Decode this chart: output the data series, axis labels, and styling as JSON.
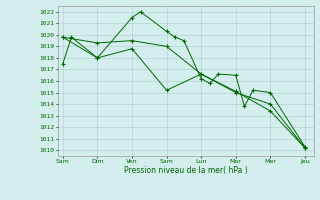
{
  "title": "",
  "xlabel": "Pression niveau de la mer( hPa )",
  "background_color": "#d4eeee",
  "grid_color": "#aacccc",
  "line_color": "#006600",
  "ylim": [
    1009.5,
    1022.5
  ],
  "yticks": [
    1010,
    1011,
    1012,
    1013,
    1014,
    1015,
    1016,
    1017,
    1018,
    1019,
    1020,
    1021,
    1022
  ],
  "day_labels": [
    "Sam",
    "Dim",
    "Ven",
    "Sam",
    "Lun",
    "Mar",
    "Mer",
    "Jeu"
  ],
  "day_positions": [
    0,
    2,
    4,
    6,
    8,
    10,
    12,
    14
  ],
  "xlim": [
    -0.3,
    14.5
  ],
  "series1": {
    "x": [
      0,
      0.5,
      2,
      4,
      4.5,
      6,
      6.5,
      7,
      8,
      8.5,
      9,
      10,
      10.5,
      11,
      12,
      14
    ],
    "y": [
      1017.5,
      1019.8,
      1018.0,
      1021.5,
      1022.0,
      1020.3,
      1019.8,
      1019.5,
      1016.2,
      1015.8,
      1016.6,
      1016.5,
      1013.8,
      1015.2,
      1015.0,
      1010.3
    ]
  },
  "series2": {
    "x": [
      0,
      2,
      4,
      6,
      8,
      10,
      12,
      14
    ],
    "y": [
      1019.8,
      1019.3,
      1019.5,
      1019.0,
      1016.6,
      1015.1,
      1013.4,
      1010.2
    ]
  },
  "series3": {
    "x": [
      0,
      2,
      4,
      6,
      8,
      10,
      12,
      14
    ],
    "y": [
      1019.8,
      1018.0,
      1018.8,
      1015.2,
      1016.6,
      1015.0,
      1014.0,
      1010.2
    ]
  }
}
